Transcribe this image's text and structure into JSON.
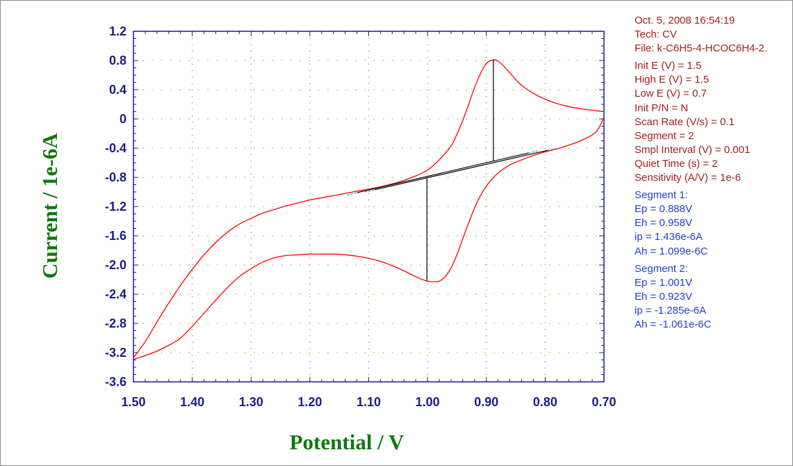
{
  "info": {
    "header": [
      "Oct. 5, 2008   16:54:19",
      "Tech: CV",
      "File: k-C6H5-4-HCOC6H4-2."
    ],
    "parameters": [
      "Init E (V) = 1.5",
      "High E (V) = 1.5",
      "Low E (V) = 0.7",
      "Init P/N = N",
      "Scan Rate (V/s) = 0.1",
      "Segment = 2",
      "Smpl Interval (V) = 0.001",
      "Quiet Time (s) = 2",
      "Sensitivity (A/V) = 1e-6"
    ],
    "segment1": [
      "Segment 1:",
      "Ep = 0.888V",
      "Eh = 0.958V",
      "ip = 1.436e-6A",
      "Ah = 1.099e-6C"
    ],
    "segment2": [
      "Segment 2:",
      "Ep = 1.001V",
      "Eh = 0.923V",
      "ip = -1.285e-6A",
      "Ah = -1.061e-6C"
    ]
  },
  "chart_data": {
    "type": "line",
    "xlabel": "Potential / V",
    "ylabel": "Current / 1e-6A",
    "xlim": [
      1.5,
      0.7
    ],
    "x_reversed": true,
    "ylim": [
      -3.6,
      1.2
    ],
    "xticks": [
      "1.50",
      "1.40",
      "1.30",
      "1.20",
      "1.10",
      "1.00",
      "0.90",
      "0.80",
      "0.70"
    ],
    "yticks": [
      "1.2",
      "0.8",
      "0.4",
      "0",
      "-0.4",
      "-0.8",
      "-1.2",
      "-1.6",
      "-2.0",
      "-2.4",
      "-2.8",
      "-3.2",
      "-3.6"
    ],
    "grid": "dotted",
    "colors": {
      "curve": "#ff0000",
      "baseline": "#000000",
      "baseline_ends": "#00c8c8",
      "axes": "#1c1c8c",
      "axis_titles": "#117711",
      "grid": "#9a9a40"
    },
    "series": [
      {
        "points": [
          [
            1.5,
            -3.27
          ],
          [
            1.48,
            -3.05
          ],
          [
            1.46,
            -2.78
          ],
          [
            1.44,
            -2.52
          ],
          [
            1.42,
            -2.28
          ],
          [
            1.4,
            -2.06
          ],
          [
            1.38,
            -1.86
          ],
          [
            1.36,
            -1.69
          ],
          [
            1.34,
            -1.55
          ],
          [
            1.32,
            -1.44
          ],
          [
            1.3,
            -1.36
          ],
          [
            1.28,
            -1.29
          ],
          [
            1.26,
            -1.24
          ],
          [
            1.24,
            -1.19
          ],
          [
            1.22,
            -1.15
          ],
          [
            1.2,
            -1.11
          ],
          [
            1.18,
            -1.08
          ],
          [
            1.16,
            -1.05
          ],
          [
            1.14,
            -1.02
          ],
          [
            1.12,
            -0.99
          ],
          [
            1.1,
            -0.96
          ],
          [
            1.08,
            -0.93
          ],
          [
            1.06,
            -0.89
          ],
          [
            1.04,
            -0.84
          ],
          [
            1.02,
            -0.78
          ],
          [
            1.0,
            -0.7
          ],
          [
            0.98,
            -0.56
          ],
          [
            0.96,
            -0.37
          ],
          [
            0.95,
            -0.21
          ],
          [
            0.94,
            -0.02
          ],
          [
            0.93,
            0.2
          ],
          [
            0.92,
            0.43
          ],
          [
            0.91,
            0.62
          ],
          [
            0.9,
            0.76
          ],
          [
            0.888,
            0.81
          ],
          [
            0.88,
            0.79
          ],
          [
            0.87,
            0.72
          ],
          [
            0.86,
            0.63
          ],
          [
            0.85,
            0.54
          ],
          [
            0.84,
            0.46
          ],
          [
            0.82,
            0.35
          ],
          [
            0.8,
            0.27
          ],
          [
            0.78,
            0.21
          ],
          [
            0.76,
            0.17
          ],
          [
            0.74,
            0.14
          ],
          [
            0.72,
            0.12
          ],
          [
            0.7,
            0.1
          ]
        ]
      },
      {
        "points": [
          [
            0.7,
            0.02
          ],
          [
            0.71,
            -0.14
          ],
          [
            0.72,
            -0.22
          ],
          [
            0.74,
            -0.3
          ],
          [
            0.76,
            -0.36
          ],
          [
            0.78,
            -0.41
          ],
          [
            0.8,
            -0.45
          ],
          [
            0.82,
            -0.5
          ],
          [
            0.84,
            -0.56
          ],
          [
            0.86,
            -0.63
          ],
          [
            0.87,
            -0.68
          ],
          [
            0.88,
            -0.74
          ],
          [
            0.89,
            -0.82
          ],
          [
            0.9,
            -0.92
          ],
          [
            0.91,
            -1.05
          ],
          [
            0.92,
            -1.22
          ],
          [
            0.93,
            -1.42
          ],
          [
            0.94,
            -1.64
          ],
          [
            0.95,
            -1.86
          ],
          [
            0.96,
            -2.04
          ],
          [
            0.97,
            -2.16
          ],
          [
            0.98,
            -2.22
          ],
          [
            0.99,
            -2.23
          ],
          [
            1.001,
            -2.22
          ],
          [
            1.02,
            -2.16
          ],
          [
            1.04,
            -2.08
          ],
          [
            1.06,
            -2.01
          ],
          [
            1.08,
            -1.95
          ],
          [
            1.1,
            -1.91
          ],
          [
            1.12,
            -1.88
          ],
          [
            1.14,
            -1.86
          ],
          [
            1.16,
            -1.85
          ],
          [
            1.18,
            -1.85
          ],
          [
            1.2,
            -1.85
          ],
          [
            1.22,
            -1.86
          ],
          [
            1.24,
            -1.87
          ],
          [
            1.26,
            -1.9
          ],
          [
            1.28,
            -1.96
          ],
          [
            1.3,
            -2.05
          ],
          [
            1.32,
            -2.16
          ],
          [
            1.34,
            -2.31
          ],
          [
            1.36,
            -2.48
          ],
          [
            1.38,
            -2.66
          ],
          [
            1.4,
            -2.84
          ],
          [
            1.42,
            -3.0
          ],
          [
            1.44,
            -3.1
          ],
          [
            1.46,
            -3.18
          ],
          [
            1.48,
            -3.24
          ],
          [
            1.5,
            -3.29
          ]
        ]
      }
    ],
    "baselines": [
      {
        "from": [
          1.12,
          -1.01
        ],
        "to": [
          0.828,
          -0.465
        ],
        "peak_x": 0.888,
        "peak_y": 0.81
      },
      {
        "from": [
          1.09,
          -0.97
        ],
        "to": [
          0.796,
          -0.43
        ],
        "peak_x": 1.001,
        "peak_y": -2.22
      }
    ]
  }
}
